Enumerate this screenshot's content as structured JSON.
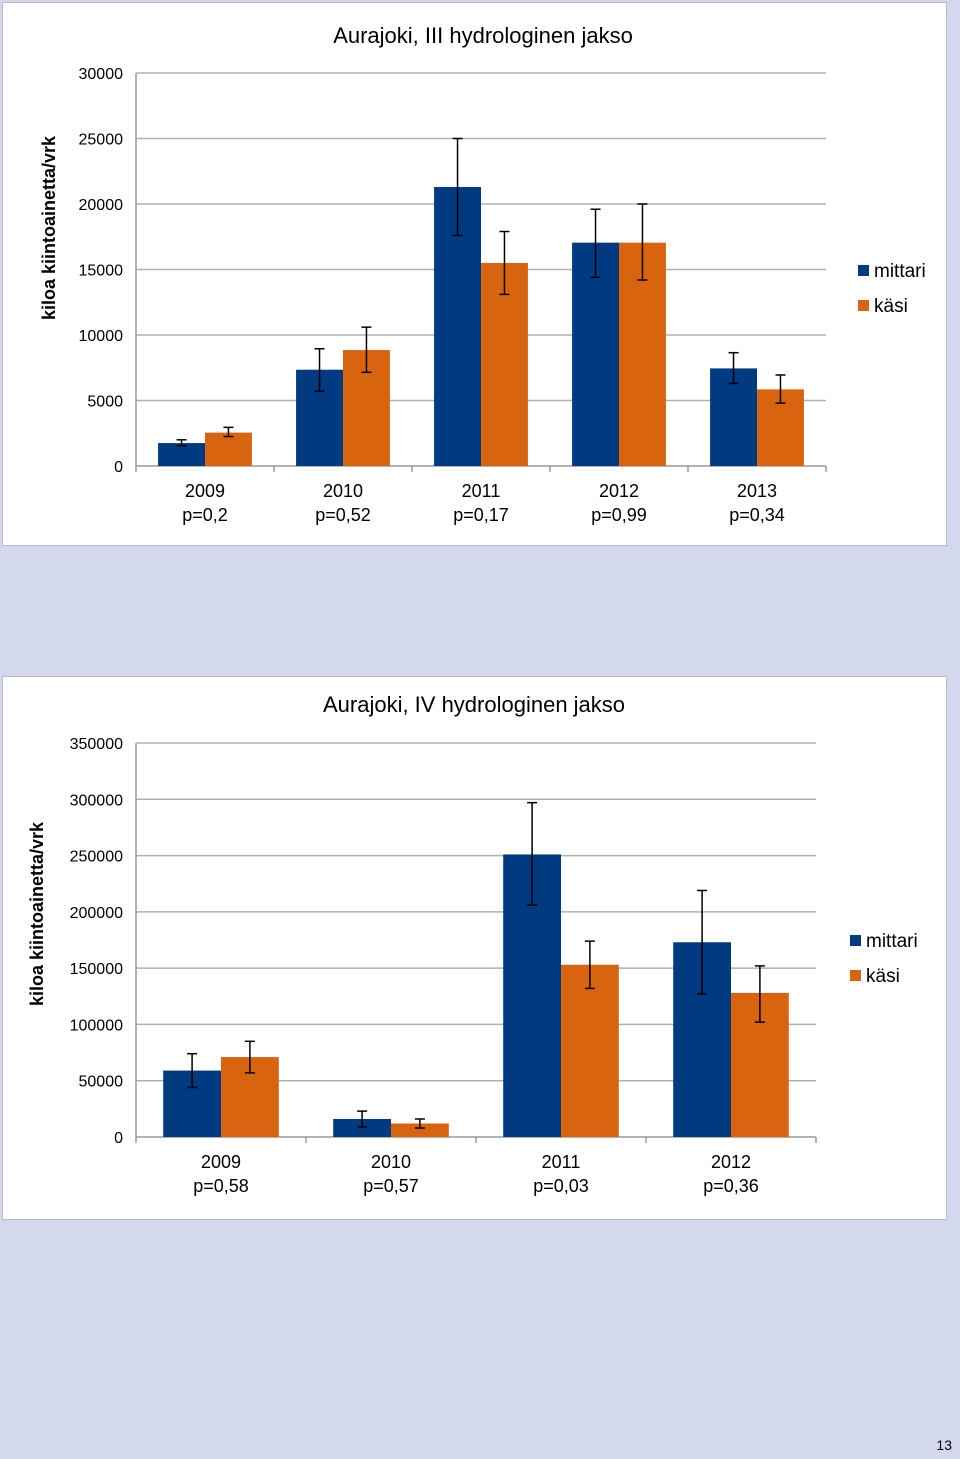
{
  "page_number": "13",
  "colors": {
    "mittari": "#003a80",
    "kasi": "#d9640f",
    "grid": "#b0b0b0"
  },
  "chart_data": [
    {
      "type": "bar",
      "title": "Aurajoki, III hydrologinen jakso",
      "ylabel": "kiloa kiintoainetta/vrk",
      "ylim": [
        0,
        30000
      ],
      "yticks": [
        0,
        5000,
        10000,
        15000,
        20000,
        25000,
        30000
      ],
      "categories": [
        "2009",
        "2010",
        "2011",
        "2012",
        "2013"
      ],
      "category_sublabels": [
        "p=0,2",
        "p=0,52",
        "p=0,17",
        "p=0,99",
        "p=0,34"
      ],
      "legend": "right",
      "series": [
        {
          "name": "mittari",
          "color": "#003a80",
          "values": [
            1750,
            7350,
            21300,
            17050,
            7450
          ],
          "err_low": [
            1550,
            5700,
            17600,
            14400,
            6300
          ],
          "err_high": [
            2000,
            8950,
            25000,
            19600,
            8650
          ]
        },
        {
          "name": "käsi",
          "color": "#d9640f",
          "values": [
            2550,
            8850,
            15500,
            17050,
            5850
          ],
          "err_low": [
            2250,
            7150,
            13100,
            14200,
            4800
          ],
          "err_high": [
            2950,
            10600,
            17900,
            20000,
            6950
          ]
        }
      ]
    },
    {
      "type": "bar",
      "title": "Aurajoki, IV hydrologinen jakso",
      "ylabel": "kiloa kiintoainetta/vrk",
      "ylim": [
        0,
        350000
      ],
      "yticks": [
        0,
        50000,
        100000,
        150000,
        200000,
        250000,
        300000,
        350000
      ],
      "categories": [
        "2009",
        "2010",
        "2011",
        "2012"
      ],
      "category_sublabels": [
        "p=0,58",
        "p=0,57",
        "p=0,03",
        "p=0,36"
      ],
      "legend": "right",
      "series": [
        {
          "name": "mittari",
          "color": "#003a80",
          "values": [
            59000,
            16000,
            251000,
            173000
          ],
          "err_low": [
            44000,
            9000,
            206000,
            127000
          ],
          "err_high": [
            74000,
            23000,
            297000,
            219000
          ]
        },
        {
          "name": "käsi",
          "color": "#d9640f",
          "values": [
            71000,
            12000,
            153000,
            128000
          ],
          "err_low": [
            57000,
            8000,
            132000,
            102000
          ],
          "err_high": [
            85000,
            16000,
            174000,
            152000
          ]
        }
      ]
    }
  ]
}
